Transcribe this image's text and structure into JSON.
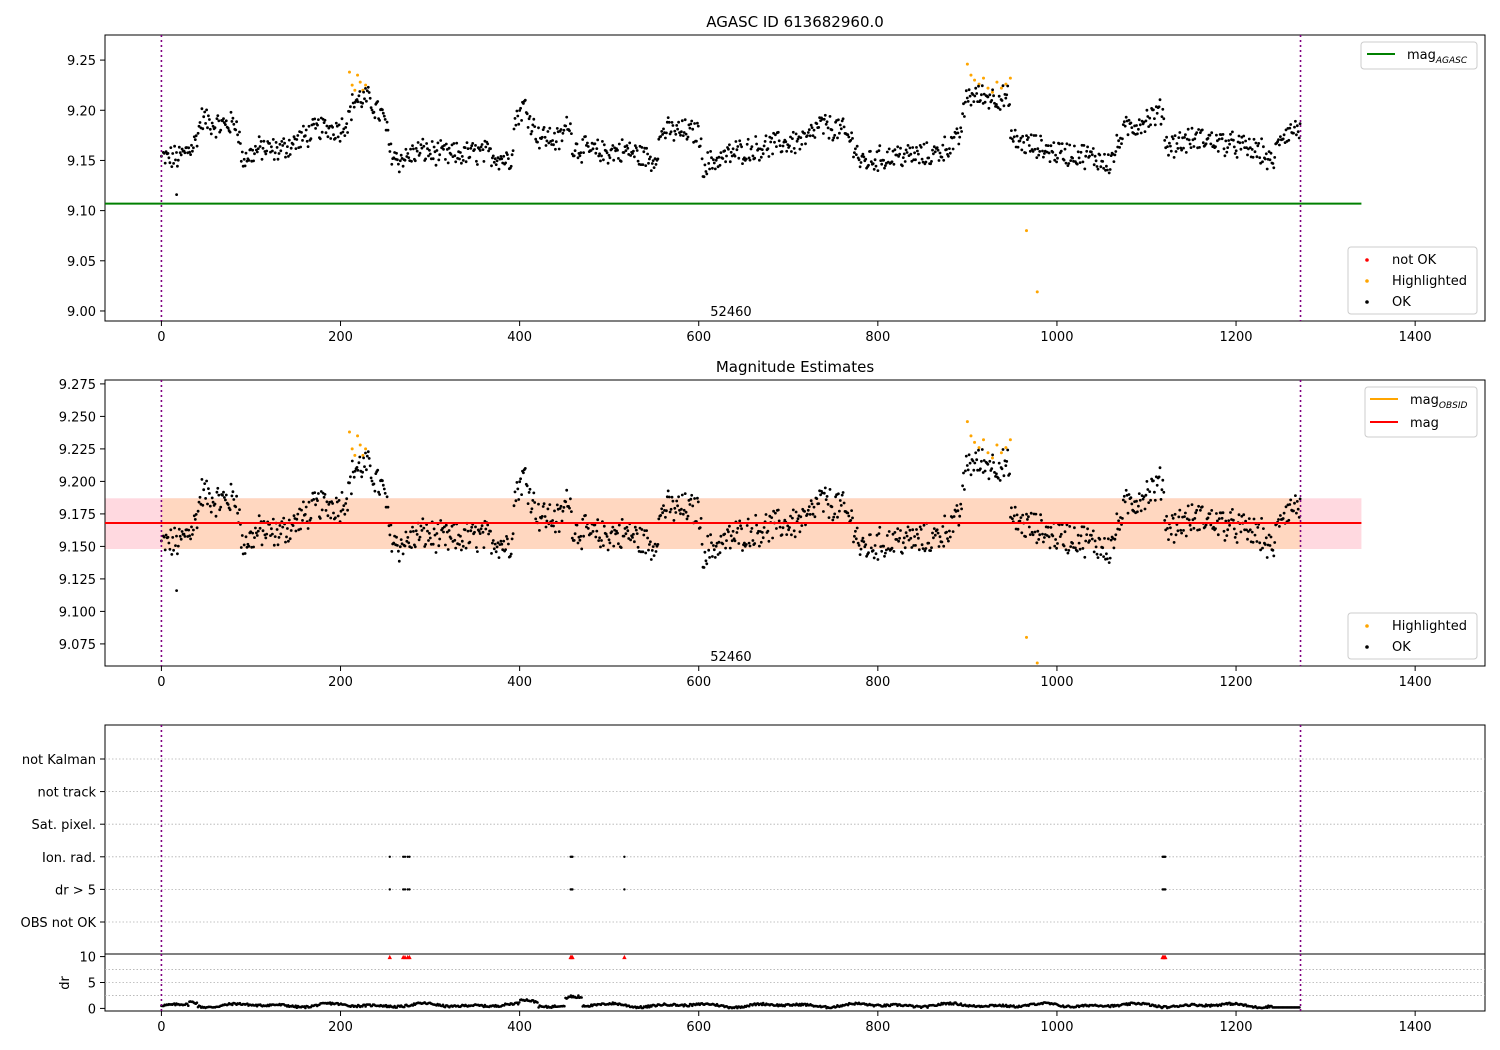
{
  "chart_data": [
    {
      "type": "scatter",
      "panel": "agasc",
      "title": "AGASC ID 613682960.0",
      "xlim": [
        -63,
        1478
      ],
      "ylim": [
        8.99,
        9.275
      ],
      "x_ticks": [
        0,
        200,
        400,
        600,
        800,
        1000,
        1200,
        1400
      ],
      "x_tick_labels": [
        "0",
        "200",
        "400",
        "600",
        "800",
        "1000",
        "1200",
        "1400"
      ],
      "y_ticks": [
        9.0,
        9.05,
        9.1,
        9.15,
        9.2,
        9.25
      ],
      "y_tick_labels": [
        "9.00",
        "9.05",
        "9.10",
        "9.15",
        "9.20",
        "9.25"
      ],
      "vlines": [
        0,
        1272
      ],
      "vline_color": "#800080",
      "hline": {
        "y": 9.107,
        "x_range": [
          -63,
          1340
        ],
        "color": "#008000"
      },
      "annotation": {
        "text": "52460",
        "x": 636,
        "y": 8.995
      },
      "legend_top": {
        "position": "upper-right",
        "entries": [
          {
            "label": "mag",
            "sub": "AGASC",
            "color": "#008000",
            "kind": "line"
          }
        ]
      },
      "legend_bottom": {
        "position": "lower-right",
        "entries": [
          {
            "label": "not OK",
            "color": "#ff0000",
            "kind": "dot"
          },
          {
            "label": "Highlighted",
            "color": "#ffa500",
            "kind": "dot"
          },
          {
            "label": "OK",
            "color": "#000000",
            "kind": "dot"
          }
        ]
      },
      "highlighted_points": [
        [
          210,
          9.238
        ],
        [
          213,
          9.225
        ],
        [
          216,
          9.22
        ],
        [
          219,
          9.235
        ],
        [
          222,
          9.228
        ],
        [
          225,
          9.22
        ],
        [
          228,
          9.225
        ],
        [
          900,
          9.246
        ],
        [
          904,
          9.235
        ],
        [
          908,
          9.23
        ],
        [
          913,
          9.226
        ],
        [
          918,
          9.232
        ],
        [
          923,
          9.222
        ],
        [
          928,
          9.218
        ],
        [
          933,
          9.228
        ],
        [
          938,
          9.222
        ],
        [
          943,
          9.226
        ],
        [
          948,
          9.232
        ],
        [
          966,
          9.08
        ],
        [
          978,
          9.019
        ]
      ]
    },
    {
      "type": "scatter",
      "panel": "estimates",
      "title": "Magnitude Estimates",
      "xlim": [
        -63,
        1478
      ],
      "ylim": [
        9.058,
        9.278
      ],
      "x_ticks": [
        0,
        200,
        400,
        600,
        800,
        1000,
        1200,
        1400
      ],
      "x_tick_labels": [
        "0",
        "200",
        "400",
        "600",
        "800",
        "1000",
        "1200",
        "1400"
      ],
      "y_ticks": [
        9.075,
        9.1,
        9.125,
        9.15,
        9.175,
        9.2,
        9.225,
        9.25,
        9.275
      ],
      "y_tick_labels": [
        "9.075",
        "9.100",
        "9.125",
        "9.150",
        "9.175",
        "9.200",
        "9.225",
        "9.250",
        "9.275"
      ],
      "vlines": [
        0,
        1272
      ],
      "vline_color": "#800080",
      "mag_line": {
        "y": 9.168,
        "x_range": [
          -63,
          1340
        ],
        "color": "#ff0000"
      },
      "band_outer": [
        9.148,
        9.187
      ],
      "band_inner": [
        9.148,
        9.187
      ],
      "band_outer_color": "#ffd9e0",
      "band_inner_color": "#ffd7c0",
      "obsid_line": {
        "y": 9.168,
        "x_range": [
          0,
          1272
        ],
        "color": "#ffa500"
      },
      "annotation": {
        "text": "52460",
        "x": 636,
        "y": 9.062
      },
      "legend_top": {
        "position": "upper-right",
        "entries": [
          {
            "label": "mag",
            "sub": "OBSID",
            "color": "#ffa500",
            "kind": "line"
          },
          {
            "label": "mag",
            "sub": "",
            "color": "#ff0000",
            "kind": "line"
          }
        ]
      },
      "legend_bottom": {
        "position": "lower-right",
        "entries": [
          {
            "label": "Highlighted",
            "color": "#ffa500",
            "kind": "dot"
          },
          {
            "label": "OK",
            "color": "#000000",
            "kind": "dot"
          }
        ]
      },
      "highlighted_points": [
        [
          210,
          9.238
        ],
        [
          213,
          9.225
        ],
        [
          216,
          9.22
        ],
        [
          219,
          9.235
        ],
        [
          222,
          9.228
        ],
        [
          225,
          9.22
        ],
        [
          228,
          9.225
        ],
        [
          900,
          9.246
        ],
        [
          904,
          9.235
        ],
        [
          908,
          9.23
        ],
        [
          913,
          9.226
        ],
        [
          918,
          9.232
        ],
        [
          923,
          9.222
        ],
        [
          928,
          9.218
        ],
        [
          933,
          9.228
        ],
        [
          938,
          9.222
        ],
        [
          943,
          9.226
        ],
        [
          948,
          9.232
        ],
        [
          966,
          9.08
        ],
        [
          978,
          9.06
        ]
      ]
    },
    {
      "type": "scatter",
      "panel": "flags",
      "xlim": [
        -63,
        1478
      ],
      "categories": [
        "not Kalman",
        "not track",
        "Sat. pixel.",
        "Ion. rad.",
        "dr > 5",
        "OBS not OK"
      ],
      "vlines": [
        0,
        1272
      ],
      "flag_points": {
        "Ion. rad.": [
          255,
          270,
          272,
          275,
          277,
          457,
          458,
          459,
          517,
          1118,
          1119,
          1120,
          1121
        ],
        "dr > 5": [
          255,
          270,
          272,
          275,
          277,
          457,
          458,
          459,
          517,
          1118,
          1119,
          1120,
          1121
        ]
      }
    },
    {
      "type": "scatter",
      "panel": "dr",
      "ylabel": "dr",
      "xlim": [
        -63,
        1478
      ],
      "ylim": [
        -0.5,
        10.5
      ],
      "x_ticks": [
        0,
        200,
        400,
        600,
        800,
        1000,
        1200,
        1400
      ],
      "x_tick_labels": [
        "0",
        "200",
        "400",
        "600",
        "800",
        "1000",
        "1200",
        "1400"
      ],
      "y_ticks": [
        0,
        5,
        10
      ],
      "y_tick_labels": [
        "0",
        "5",
        "10"
      ],
      "vlines": [
        0,
        1272
      ],
      "clipped_markers_x": [
        255,
        270,
        272,
        275,
        277,
        457,
        458,
        459,
        517,
        1118,
        1119,
        1120,
        1121
      ],
      "marker_color": "#ff0000"
    }
  ]
}
